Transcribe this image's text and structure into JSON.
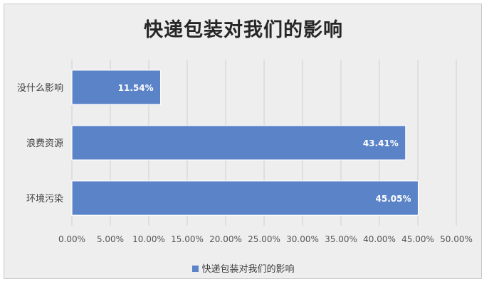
{
  "chart_data": {
    "type": "bar",
    "orientation": "horizontal",
    "title": "快递包装对我们的影响",
    "categories": [
      "没什么影响",
      "浪费资源",
      "环境污染"
    ],
    "series": [
      {
        "name": "快递包装对我们的影响",
        "values": [
          11.54,
          43.41,
          45.05
        ],
        "color": "#5b83c8"
      }
    ],
    "data_labels": [
      "11.54%",
      "43.41%",
      "45.05%"
    ],
    "x_ticks": [
      "0.00%",
      "5.00%",
      "10.00%",
      "15.00%",
      "20.00%",
      "25.00%",
      "30.00%",
      "35.00%",
      "40.00%",
      "45.00%",
      "50.00%"
    ],
    "xlim": [
      0,
      50
    ],
    "grid": true,
    "legend_position": "bottom"
  },
  "colors": {
    "bar": "#5b83c8",
    "grid": "#d0d0d0"
  }
}
